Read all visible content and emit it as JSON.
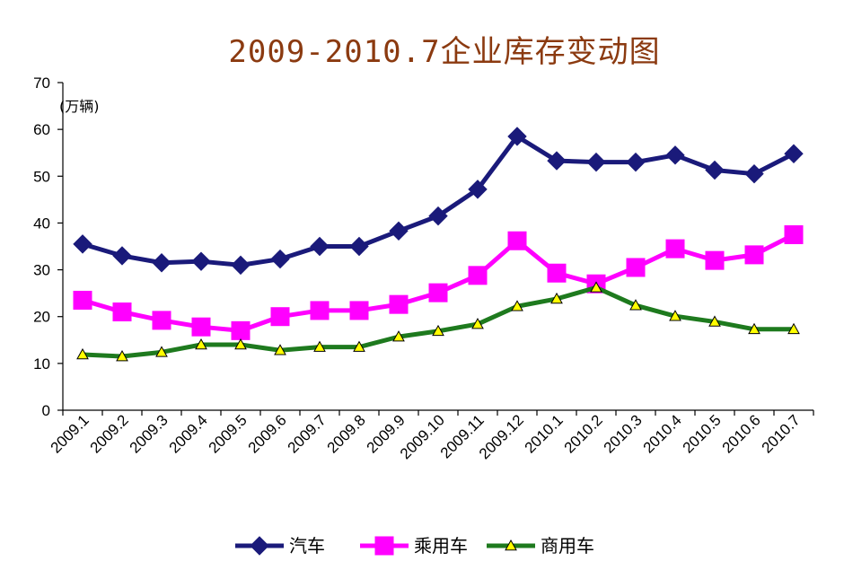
{
  "chart_data": {
    "type": "line",
    "title": "2009-2010.7企业库存变动图",
    "ylabel": "(万辆)",
    "xlabel": "",
    "ylim": [
      0,
      70
    ],
    "yticks": [
      0,
      10,
      20,
      30,
      40,
      50,
      60,
      70
    ],
    "categories": [
      "2009.1",
      "2009.2",
      "2009.3",
      "2009.4",
      "2009.5",
      "2009.6",
      "2009.7",
      "2009.8",
      "2009.9",
      "2009.10",
      "2009.11",
      "2009.12",
      "2010.1",
      "2010.2",
      "2010.3",
      "2010.4",
      "2010.5",
      "2010.6",
      "2010.7"
    ],
    "series": [
      {
        "name": "汽车",
        "color": "#1a1a7a",
        "marker": "diamond",
        "values": [
          35.5,
          33,
          31.5,
          31.8,
          31,
          32.3,
          35,
          35,
          38.3,
          41.5,
          47.2,
          58.5,
          53.3,
          53,
          53,
          54.5,
          51.3,
          50.5,
          54.8
        ]
      },
      {
        "name": "乘用车",
        "color": "#ff00ff",
        "marker": "square",
        "values": [
          23.5,
          21,
          19.2,
          17.8,
          17,
          20,
          21.3,
          21.3,
          22.6,
          25.1,
          28.8,
          36.2,
          29.3,
          27,
          30.5,
          34.5,
          32,
          33.2,
          37.5
        ]
      },
      {
        "name": "商用车",
        "color": "#1e7a1e",
        "marker": "triangle",
        "values": [
          11.9,
          11.5,
          12.4,
          14,
          14,
          12.8,
          13.5,
          13.5,
          15.7,
          16.9,
          18.4,
          22.2,
          23.8,
          26.2,
          22.4,
          20.1,
          18.9,
          17.3,
          17.3
        ]
      }
    ],
    "legend_position": "bottom"
  }
}
